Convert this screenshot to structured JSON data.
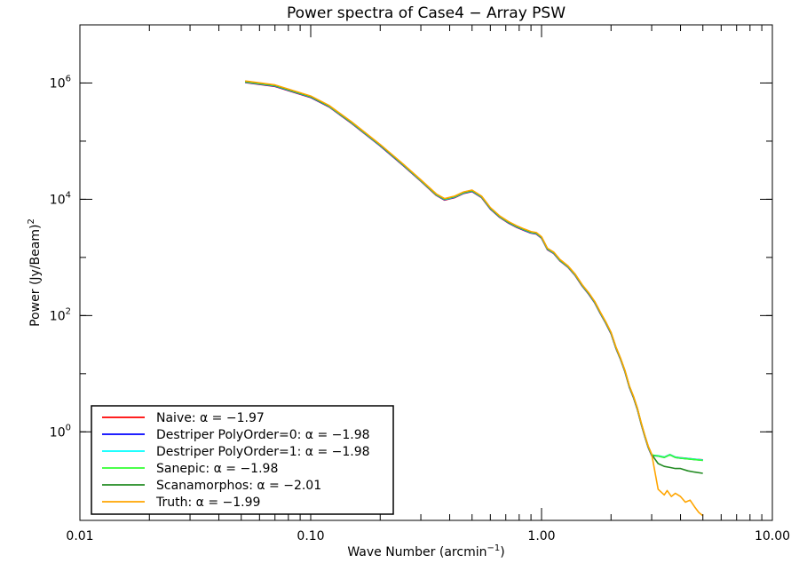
{
  "chart_data": {
    "type": "line",
    "title": "Power spectra of Case4 − Array PSW",
    "xlabel": "Wave Number (arcmin",
    "xlabel_sup": "−1",
    "xlabel_close": ")",
    "ylabel": "Power (Jy/Beam)",
    "ylabel_sup": "2",
    "xscale": "log",
    "yscale": "log",
    "xlim": [
      0.01,
      10
    ],
    "ylim": [
      0.03,
      10000000
    ],
    "x_ticks": [
      {
        "value": 0.01,
        "label": "0.01"
      },
      {
        "value": 0.1,
        "label": "0.10"
      },
      {
        "value": 1,
        "label": "1.00"
      },
      {
        "value": 10,
        "label": "10.00"
      }
    ],
    "y_ticks": [
      {
        "value": 1,
        "base": "10",
        "exp": "0"
      },
      {
        "value": 100,
        "base": "10",
        "exp": "2"
      },
      {
        "value": 10000,
        "base": "10",
        "exp": "4"
      },
      {
        "value": 1000000,
        "base": "10",
        "exp": "6"
      }
    ],
    "legend_position": "bottom-left",
    "shared_x": [
      0.052,
      0.07,
      0.1,
      0.12,
      0.15,
      0.2,
      0.25,
      0.3,
      0.35,
      0.38,
      0.42,
      0.46,
      0.5,
      0.55,
      0.6,
      0.66,
      0.72,
      0.78,
      0.84,
      0.9,
      0.95,
      1.0,
      1.06,
      1.13,
      1.2,
      1.3,
      1.4,
      1.5,
      1.6,
      1.7,
      1.8,
      1.9,
      2.0,
      2.1,
      2.2,
      2.3,
      2.4,
      2.5,
      2.6,
      2.7,
      2.8,
      2.9,
      3.0
    ],
    "shared_y": [
      1050000,
      900000,
      580000,
      400000,
      210000,
      85000,
      40000,
      21000,
      12000,
      10000,
      11000,
      13000,
      14000,
      11000,
      7000,
      5000,
      4000,
      3400,
      3000,
      2700,
      2600,
      2200,
      1400,
      1200,
      900,
      700,
      500,
      330,
      240,
      170,
      110,
      75,
      50,
      28,
      18,
      11,
      6,
      4.0,
      2.5,
      1.4,
      0.85,
      0.55,
      0.4
    ],
    "series": [
      {
        "name": "Naive: α = −1.97",
        "color": "#ff0000",
        "tail_x": [
          3.2,
          3.4,
          3.6,
          3.8,
          4.0,
          4.3,
          4.6,
          5.0
        ],
        "tail_y": [
          0.4,
          0.38,
          0.42,
          0.38,
          0.37,
          0.36,
          0.35,
          0.34
        ]
      },
      {
        "name": "Destriper PolyOrder=0: α = −1.98",
        "color": "#0000ff",
        "tail_x": [
          3.2,
          3.4,
          3.6,
          3.8,
          4.0,
          4.3,
          4.6,
          5.0
        ],
        "tail_y": [
          0.39,
          0.37,
          0.41,
          0.37,
          0.36,
          0.35,
          0.34,
          0.33
        ]
      },
      {
        "name": "Destriper PolyOrder=1: α = −1.98",
        "color": "#00ffff",
        "tail_x": [
          3.2,
          3.4,
          3.6,
          3.8,
          4.0,
          4.3,
          4.6,
          5.0
        ],
        "tail_y": [
          0.39,
          0.37,
          0.41,
          0.37,
          0.36,
          0.35,
          0.34,
          0.33
        ]
      },
      {
        "name": "Sanepic: α = −1.98",
        "color": "#33ff33",
        "tail_x": [
          3.2,
          3.4,
          3.6,
          3.8,
          4.0,
          4.3,
          4.6,
          5.0
        ],
        "tail_y": [
          0.38,
          0.36,
          0.4,
          0.36,
          0.35,
          0.34,
          0.33,
          0.32
        ]
      },
      {
        "name": "Scanamorphos: α = −2.01",
        "color": "#228b22",
        "tail_x": [
          3.2,
          3.4,
          3.6,
          3.8,
          4.0,
          4.3,
          4.6,
          5.0
        ],
        "tail_y": [
          0.28,
          0.25,
          0.24,
          0.23,
          0.23,
          0.21,
          0.2,
          0.19
        ]
      },
      {
        "name": "Truth: α = −1.99",
        "color": "#ffa500",
        "tail_x": [
          3.2,
          3.4,
          3.5,
          3.65,
          3.8,
          4.0,
          4.2,
          4.4,
          4.6,
          4.8,
          5.0
        ],
        "tail_y": [
          0.1,
          0.08,
          0.095,
          0.075,
          0.085,
          0.075,
          0.06,
          0.065,
          0.05,
          0.04,
          0.035
        ]
      }
    ]
  }
}
